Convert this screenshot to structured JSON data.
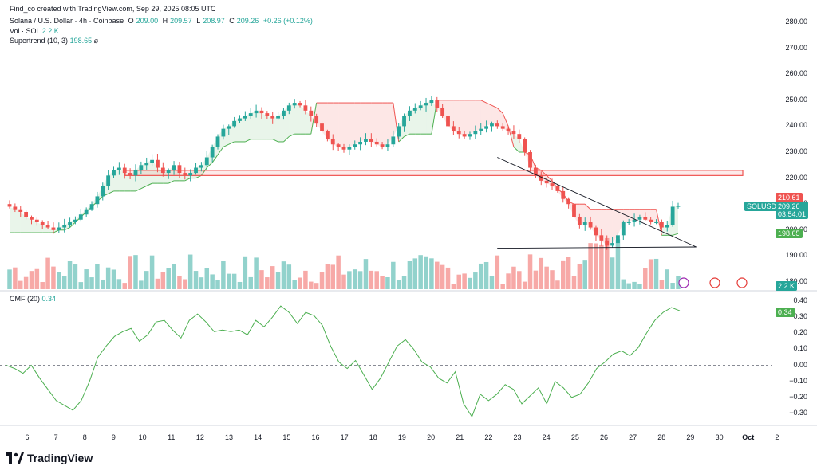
{
  "header": {
    "credit": "Find_co created with TradingView.com, Sep 29, 2025 08:05 UTC",
    "symbol": "Solana / U.S. Dollar · 4h · Coinbase",
    "open_label": "O",
    "open": "209.00",
    "high_label": "H",
    "high": "209.57",
    "low_label": "L",
    "low": "208.97",
    "close_label": "C",
    "close": "209.26",
    "change": "+0.26 (+0.12%)"
  },
  "indicators": {
    "vol_label": "Vol · SOL",
    "vol_value": "2.2 K",
    "supertrend_label": "Supertrend (10, 3)",
    "supertrend_value": "198.65",
    "cmf_label": "CMF (20)",
    "cmf_value": "0.34"
  },
  "price_axis": [
    "280.00",
    "270.00",
    "260.00",
    "250.00",
    "240.00",
    "230.00",
    "220.00",
    "210.00",
    "200.00",
    "190.00",
    "180.00"
  ],
  "cmf_axis": [
    "0.40",
    "0.30",
    "0.20",
    "0.10",
    "0.00",
    "−0.10",
    "−0.20",
    "−0.30"
  ],
  "tags": {
    "high_tag": "210.61",
    "symbol_tag": "SOLUSD",
    "price_tag": "209.26",
    "countdown": "03:54:01",
    "supertrend_tag": "198.65",
    "vol_tag": "2.2 K",
    "cmf_tag": "0.34"
  },
  "time_axis": [
    "6",
    "7",
    "8",
    "9",
    "10",
    "11",
    "12",
    "13",
    "14",
    "15",
    "16",
    "17",
    "18",
    "19",
    "20",
    "21",
    "22",
    "23",
    "24",
    "25",
    "26",
    "27",
    "28",
    "29",
    "30",
    "Oct",
    "2"
  ],
  "brand": "TradingView",
  "colors": {
    "up": "#26a69a",
    "down": "#ef5350",
    "cmf": "#4caf50",
    "zone": "#ef5350"
  },
  "chart_data": {
    "type": "candlestick",
    "title": "Solana / U.S. Dollar · 4h · Coinbase",
    "xlabel": "",
    "ylabel": "",
    "ylim": [
      180,
      285
    ],
    "close": [
      209,
      208,
      207,
      205,
      204,
      203,
      202,
      201,
      200,
      201,
      202,
      203,
      204,
      206,
      208,
      210,
      213,
      217,
      221,
      223,
      224,
      222,
      221,
      223,
      225,
      226,
      227,
      224,
      222,
      223,
      225,
      222,
      221,
      222,
      224,
      225,
      228,
      232,
      236,
      239,
      240,
      242,
      243,
      244,
      245,
      246,
      245,
      244,
      243,
      244,
      246,
      248,
      249,
      248,
      246,
      244,
      241,
      238,
      235,
      233,
      232,
      231,
      232,
      233,
      234,
      235,
      234,
      233,
      232,
      233,
      236,
      240,
      244,
      246,
      247,
      248,
      249,
      250,
      247,
      244,
      240,
      238,
      237,
      236,
      237,
      238,
      239,
      240,
      241,
      240,
      239,
      238,
      237,
      235,
      230,
      224,
      221,
      219,
      218,
      217,
      215,
      212,
      210,
      205,
      202,
      203,
      201,
      198,
      196,
      194,
      195,
      198,
      203,
      203,
      204,
      205,
      204,
      203,
      203,
      201,
      202,
      209,
      209.26
    ],
    "supertrend": [
      199,
      199,
      199,
      199,
      199,
      199,
      199,
      199,
      199,
      200,
      200,
      201,
      203,
      205,
      207,
      209,
      211,
      213,
      214,
      215,
      215,
      215,
      215,
      215,
      216,
      217,
      218,
      218,
      218,
      218,
      219,
      219,
      219,
      220,
      220,
      221,
      224,
      226,
      229,
      232,
      233,
      234,
      234,
      234,
      235,
      235,
      235,
      235,
      235,
      234,
      234,
      236,
      237,
      237,
      237,
      237,
      249,
      249,
      249,
      249,
      249,
      249,
      249,
      249,
      249,
      249,
      249,
      249,
      249,
      249,
      249,
      234,
      236,
      237,
      237,
      237,
      237,
      237,
      250,
      250,
      250,
      250,
      250,
      250,
      250,
      250,
      250,
      249,
      248,
      247,
      245,
      240,
      232,
      230,
      230,
      229,
      224,
      223,
      221,
      219,
      216,
      214,
      211,
      210,
      210,
      210,
      208,
      208,
      208,
      208,
      208,
      208,
      208,
      208,
      208,
      208,
      208,
      208,
      208,
      198,
      198,
      198,
      198.65
    ],
    "cmf": [
      0.0,
      -0.02,
      -0.05,
      0.0,
      -0.08,
      -0.15,
      -0.22,
      -0.25,
      -0.28,
      -0.22,
      -0.1,
      0.05,
      0.12,
      0.18,
      0.21,
      0.23,
      0.15,
      0.19,
      0.27,
      0.28,
      0.22,
      0.17,
      0.28,
      0.32,
      0.27,
      0.21,
      0.22,
      0.21,
      0.22,
      0.19,
      0.28,
      0.24,
      0.3,
      0.37,
      0.33,
      0.26,
      0.33,
      0.31,
      0.25,
      0.12,
      0.02,
      -0.02,
      0.03,
      -0.06,
      -0.15,
      -0.08,
      0.02,
      0.12,
      0.16,
      0.1,
      0.02,
      -0.01,
      -0.08,
      -0.11,
      -0.04,
      -0.24,
      -0.32,
      -0.18,
      -0.22,
      -0.18,
      -0.12,
      -0.15,
      -0.24,
      -0.19,
      -0.14,
      -0.24,
      -0.1,
      -0.14,
      -0.2,
      -0.18,
      -0.11,
      -0.02,
      0.02,
      0.07,
      0.09,
      0.06,
      0.11,
      0.2,
      0.28,
      0.33,
      0.36,
      0.34
    ],
    "trendlines": [
      {
        "from": [
          22.3,
          228
        ],
        "to": [
          29.2,
          193.5
        ]
      },
      {
        "from": [
          22.3,
          193
        ],
        "to": [
          29.2,
          193.5
        ]
      }
    ],
    "resistance_zone": [
      221,
      223
    ],
    "legend": "top-left"
  }
}
